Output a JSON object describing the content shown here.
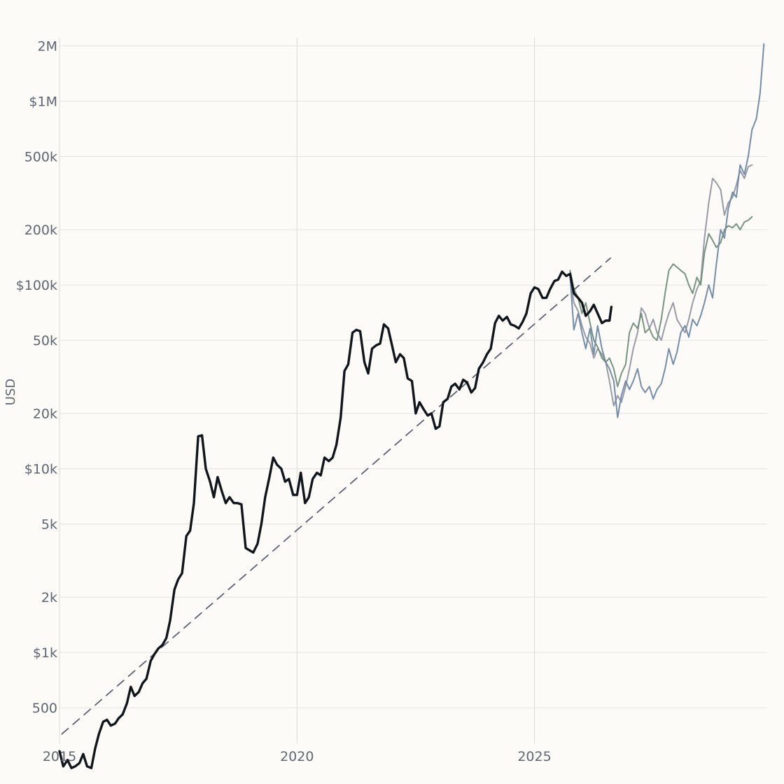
{
  "chart_data": {
    "type": "line",
    "title": "",
    "xlabel": "",
    "ylabel": "USD",
    "scale_y": "log",
    "xlim": [
      2015.0,
      2029.9
    ],
    "ylim": [
      320,
      2100000
    ],
    "grid": true,
    "legend": "none",
    "x_ticks": [
      2015,
      2020,
      2025
    ],
    "x_tick_labels": [
      "2015",
      "2020",
      "2025"
    ],
    "y_ticks": [
      500,
      1000,
      2000,
      5000,
      10000,
      20000,
      50000,
      100000,
      200000,
      500000,
      1000000,
      2000000
    ],
    "y_tick_labels": [
      "500",
      "$1k",
      "2k",
      "5k",
      "$10k",
      "20k",
      "50k",
      "$100k",
      "200k",
      "500k",
      "$1M",
      "2M"
    ],
    "colors": {
      "history": "#11151c",
      "trend": "#5c6270",
      "projection_blue": "#6b87a8",
      "projection_green": "#6e8f79",
      "projection_gray": "#9296a0",
      "grid": "#e3e2de",
      "background": "#fcfbf7"
    },
    "series": [
      {
        "key": "history",
        "style": "solid-bold",
        "points": [
          [
            2015.0,
            290
          ],
          [
            2015.08,
            240
          ],
          [
            2015.17,
            260
          ],
          [
            2015.25,
            235
          ],
          [
            2015.33,
            240
          ],
          [
            2015.42,
            250
          ],
          [
            2015.5,
            280
          ],
          [
            2015.58,
            240
          ],
          [
            2015.67,
            235
          ],
          [
            2015.75,
            300
          ],
          [
            2015.83,
            360
          ],
          [
            2015.92,
            420
          ],
          [
            2016.0,
            430
          ],
          [
            2016.08,
            400
          ],
          [
            2016.17,
            410
          ],
          [
            2016.25,
            440
          ],
          [
            2016.33,
            460
          ],
          [
            2016.42,
            530
          ],
          [
            2016.5,
            650
          ],
          [
            2016.58,
            580
          ],
          [
            2016.67,
            610
          ],
          [
            2016.75,
            680
          ],
          [
            2016.83,
            720
          ],
          [
            2016.92,
            900
          ],
          [
            2017.0,
            980
          ],
          [
            2017.08,
            1050
          ],
          [
            2017.17,
            1100
          ],
          [
            2017.25,
            1200
          ],
          [
            2017.33,
            1500
          ],
          [
            2017.42,
            2200
          ],
          [
            2017.5,
            2500
          ],
          [
            2017.58,
            2700
          ],
          [
            2017.67,
            4300
          ],
          [
            2017.75,
            4600
          ],
          [
            2017.83,
            6500
          ],
          [
            2017.92,
            15000
          ],
          [
            2018.0,
            15200
          ],
          [
            2018.08,
            10000
          ],
          [
            2018.17,
            8500
          ],
          [
            2018.25,
            7000
          ],
          [
            2018.33,
            9000
          ],
          [
            2018.42,
            7500
          ],
          [
            2018.5,
            6500
          ],
          [
            2018.58,
            7000
          ],
          [
            2018.67,
            6500
          ],
          [
            2018.75,
            6500
          ],
          [
            2018.83,
            6400
          ],
          [
            2018.92,
            3700
          ],
          [
            2019.0,
            3600
          ],
          [
            2019.08,
            3500
          ],
          [
            2019.17,
            3900
          ],
          [
            2019.25,
            5000
          ],
          [
            2019.33,
            7000
          ],
          [
            2019.42,
            9000
          ],
          [
            2019.5,
            11500
          ],
          [
            2019.58,
            10500
          ],
          [
            2019.67,
            10000
          ],
          [
            2019.75,
            8500
          ],
          [
            2019.83,
            8800
          ],
          [
            2019.92,
            7200
          ],
          [
            2020.0,
            7200
          ],
          [
            2020.08,
            9500
          ],
          [
            2020.17,
            6500
          ],
          [
            2020.25,
            7000
          ],
          [
            2020.33,
            8800
          ],
          [
            2020.42,
            9500
          ],
          [
            2020.5,
            9200
          ],
          [
            2020.58,
            11500
          ],
          [
            2020.67,
            11000
          ],
          [
            2020.75,
            11500
          ],
          [
            2020.83,
            13500
          ],
          [
            2020.92,
            19000
          ],
          [
            2021.0,
            34000
          ],
          [
            2021.08,
            37000
          ],
          [
            2021.17,
            55000
          ],
          [
            2021.25,
            57000
          ],
          [
            2021.33,
            56000
          ],
          [
            2021.42,
            38000
          ],
          [
            2021.5,
            33000
          ],
          [
            2021.58,
            45000
          ],
          [
            2021.67,
            47000
          ],
          [
            2021.75,
            48000
          ],
          [
            2021.83,
            61000
          ],
          [
            2021.92,
            58000
          ],
          [
            2022.0,
            47000
          ],
          [
            2022.08,
            38000
          ],
          [
            2022.17,
            42000
          ],
          [
            2022.25,
            40000
          ],
          [
            2022.33,
            31000
          ],
          [
            2022.42,
            30000
          ],
          [
            2022.5,
            20000
          ],
          [
            2022.58,
            23000
          ],
          [
            2022.67,
            21000
          ],
          [
            2022.75,
            19500
          ],
          [
            2022.83,
            20000
          ],
          [
            2022.92,
            16500
          ],
          [
            2023.0,
            17000
          ],
          [
            2023.08,
            23000
          ],
          [
            2023.17,
            24000
          ],
          [
            2023.25,
            28000
          ],
          [
            2023.33,
            29000
          ],
          [
            2023.42,
            27000
          ],
          [
            2023.5,
            30500
          ],
          [
            2023.58,
            29500
          ],
          [
            2023.67,
            26000
          ],
          [
            2023.75,
            27500
          ],
          [
            2023.83,
            35000
          ],
          [
            2023.92,
            38000
          ],
          [
            2024.0,
            42000
          ],
          [
            2024.08,
            45000
          ],
          [
            2024.17,
            62000
          ],
          [
            2024.25,
            68000
          ],
          [
            2024.33,
            64000
          ],
          [
            2024.42,
            67000
          ],
          [
            2024.5,
            61000
          ],
          [
            2024.58,
            60000
          ],
          [
            2024.67,
            58000
          ],
          [
            2024.75,
            63000
          ],
          [
            2024.83,
            70000
          ],
          [
            2024.92,
            90000
          ],
          [
            2025.0,
            97000
          ],
          [
            2025.08,
            95000
          ],
          [
            2025.17,
            85000
          ],
          [
            2025.25,
            85000
          ],
          [
            2025.33,
            95000
          ],
          [
            2025.42,
            105000
          ],
          [
            2025.5,
            107000
          ],
          [
            2025.58,
            118000
          ],
          [
            2025.67,
            112000
          ],
          [
            2025.75,
            115000
          ],
          [
            2025.83,
            90000
          ],
          [
            2025.92,
            85000
          ],
          [
            2026.0,
            80000
          ],
          [
            2026.08,
            68000
          ],
          [
            2026.17,
            72000
          ],
          [
            2026.25,
            78000
          ],
          [
            2026.33,
            70000
          ],
          [
            2026.42,
            62000
          ],
          [
            2026.5,
            64000
          ],
          [
            2026.58,
            64000
          ],
          [
            2026.62,
            76000
          ]
        ]
      },
      {
        "key": "trend",
        "style": "dashed",
        "points": [
          [
            2015.05,
            360
          ],
          [
            2026.6,
            140000
          ]
        ]
      },
      {
        "key": "projection_blue",
        "style": "thin",
        "points": [
          [
            2025.75,
            112000
          ],
          [
            2025.83,
            57000
          ],
          [
            2025.92,
            70000
          ],
          [
            2026.0,
            55000
          ],
          [
            2026.08,
            45000
          ],
          [
            2026.17,
            58000
          ],
          [
            2026.25,
            42000
          ],
          [
            2026.33,
            60000
          ],
          [
            2026.42,
            45000
          ],
          [
            2026.5,
            38000
          ],
          [
            2026.58,
            35000
          ],
          [
            2026.67,
            30000
          ],
          [
            2026.75,
            19000
          ],
          [
            2026.83,
            25000
          ],
          [
            2026.92,
            30000
          ],
          [
            2027.0,
            27000
          ],
          [
            2027.08,
            30000
          ],
          [
            2027.17,
            35000
          ],
          [
            2027.25,
            28000
          ],
          [
            2027.33,
            26000
          ],
          [
            2027.42,
            28000
          ],
          [
            2027.5,
            24000
          ],
          [
            2027.58,
            27000
          ],
          [
            2027.67,
            29000
          ],
          [
            2027.75,
            35000
          ],
          [
            2027.83,
            45000
          ],
          [
            2027.92,
            37000
          ],
          [
            2028.0,
            43000
          ],
          [
            2028.08,
            55000
          ],
          [
            2028.17,
            60000
          ],
          [
            2028.25,
            52000
          ],
          [
            2028.33,
            65000
          ],
          [
            2028.42,
            60000
          ],
          [
            2028.5,
            68000
          ],
          [
            2028.58,
            80000
          ],
          [
            2028.67,
            100000
          ],
          [
            2028.75,
            85000
          ],
          [
            2028.83,
            130000
          ],
          [
            2028.92,
            200000
          ],
          [
            2029.0,
            180000
          ],
          [
            2029.08,
            260000
          ],
          [
            2029.17,
            320000
          ],
          [
            2029.25,
            300000
          ],
          [
            2029.33,
            450000
          ],
          [
            2029.42,
            400000
          ],
          [
            2029.5,
            500000
          ],
          [
            2029.58,
            700000
          ],
          [
            2029.67,
            800000
          ],
          [
            2029.75,
            1100000
          ],
          [
            2029.83,
            2050000
          ]
        ]
      },
      {
        "key": "projection_green",
        "style": "thin",
        "points": [
          [
            2025.75,
            120000
          ],
          [
            2025.83,
            95000
          ],
          [
            2025.92,
            85000
          ],
          [
            2026.0,
            70000
          ],
          [
            2026.08,
            80000
          ],
          [
            2026.17,
            62000
          ],
          [
            2026.25,
            50000
          ],
          [
            2026.33,
            46000
          ],
          [
            2026.42,
            40000
          ],
          [
            2026.5,
            38000
          ],
          [
            2026.58,
            40000
          ],
          [
            2026.67,
            35000
          ],
          [
            2026.75,
            28000
          ],
          [
            2026.83,
            33000
          ],
          [
            2026.92,
            37000
          ],
          [
            2027.0,
            55000
          ],
          [
            2027.08,
            62000
          ],
          [
            2027.17,
            58000
          ],
          [
            2027.25,
            70000
          ],
          [
            2027.33,
            55000
          ],
          [
            2027.42,
            58000
          ],
          [
            2027.5,
            52000
          ],
          [
            2027.58,
            50000
          ],
          [
            2027.67,
            65000
          ],
          [
            2027.75,
            90000
          ],
          [
            2027.83,
            120000
          ],
          [
            2027.92,
            130000
          ],
          [
            2028.0,
            125000
          ],
          [
            2028.08,
            120000
          ],
          [
            2028.17,
            115000
          ],
          [
            2028.25,
            100000
          ],
          [
            2028.33,
            90000
          ],
          [
            2028.42,
            110000
          ],
          [
            2028.5,
            100000
          ],
          [
            2028.58,
            150000
          ],
          [
            2028.67,
            190000
          ],
          [
            2028.75,
            175000
          ],
          [
            2028.83,
            160000
          ],
          [
            2028.92,
            170000
          ],
          [
            2029.0,
            200000
          ],
          [
            2029.08,
            210000
          ],
          [
            2029.17,
            205000
          ],
          [
            2029.25,
            215000
          ],
          [
            2029.33,
            200000
          ],
          [
            2029.42,
            220000
          ],
          [
            2029.5,
            225000
          ],
          [
            2029.58,
            235000
          ]
        ]
      },
      {
        "key": "projection_gray",
        "style": "thin",
        "points": [
          [
            2025.75,
            110000
          ],
          [
            2025.83,
            80000
          ],
          [
            2025.92,
            72000
          ],
          [
            2026.0,
            60000
          ],
          [
            2026.08,
            52000
          ],
          [
            2026.17,
            48000
          ],
          [
            2026.25,
            40000
          ],
          [
            2026.33,
            45000
          ],
          [
            2026.42,
            42000
          ],
          [
            2026.5,
            38000
          ],
          [
            2026.58,
            30000
          ],
          [
            2026.67,
            22000
          ],
          [
            2026.75,
            25000
          ],
          [
            2026.83,
            23000
          ],
          [
            2026.92,
            28000
          ],
          [
            2027.0,
            35000
          ],
          [
            2027.08,
            45000
          ],
          [
            2027.17,
            55000
          ],
          [
            2027.25,
            75000
          ],
          [
            2027.33,
            70000
          ],
          [
            2027.42,
            58000
          ],
          [
            2027.5,
            65000
          ],
          [
            2027.58,
            55000
          ],
          [
            2027.67,
            50000
          ],
          [
            2027.75,
            60000
          ],
          [
            2027.83,
            70000
          ],
          [
            2027.92,
            80000
          ],
          [
            2028.0,
            65000
          ],
          [
            2028.08,
            60000
          ],
          [
            2028.17,
            55000
          ],
          [
            2028.25,
            65000
          ],
          [
            2028.33,
            80000
          ],
          [
            2028.42,
            95000
          ],
          [
            2028.5,
            105000
          ],
          [
            2028.58,
            180000
          ],
          [
            2028.67,
            280000
          ],
          [
            2028.75,
            380000
          ],
          [
            2028.83,
            360000
          ],
          [
            2028.92,
            330000
          ],
          [
            2029.0,
            240000
          ],
          [
            2029.08,
            280000
          ],
          [
            2029.17,
            300000
          ],
          [
            2029.25,
            350000
          ],
          [
            2029.33,
            420000
          ],
          [
            2029.42,
            380000
          ],
          [
            2029.5,
            440000
          ],
          [
            2029.58,
            450000
          ]
        ]
      }
    ]
  }
}
